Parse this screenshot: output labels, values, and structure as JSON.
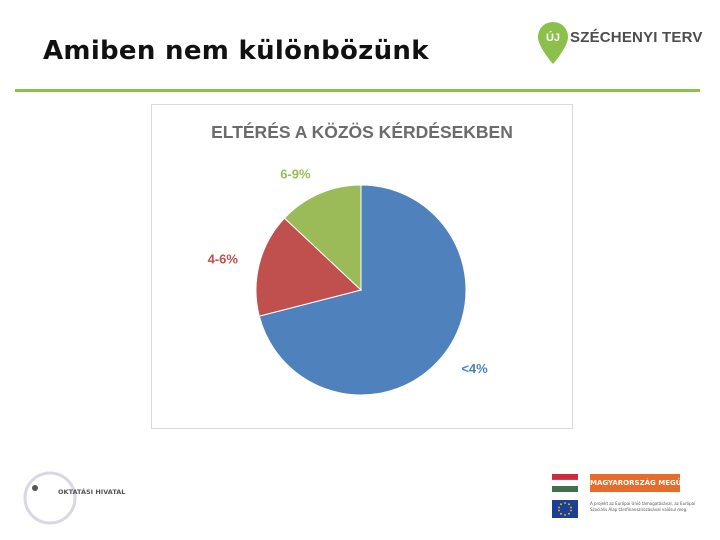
{
  "slide": {
    "title": "Amiben nem különbözünk"
  },
  "logos": {
    "szechenyi": {
      "mark": "ÚJ",
      "text": "SZÉCHENYI TERV",
      "color": "#8cc04b"
    },
    "oktatasi_hivatal": {
      "text": "OKTATÁSI HIVATAL"
    },
    "hungary_banner": {
      "label": "MAGYARORSZÁG MEGÚJUL",
      "eu_text": "A projekt az Európai Unió támogatásával, az Európai Szociális Alap társfinanszírozásával valósul meg."
    }
  },
  "chart_data": {
    "type": "pie",
    "title": "ELTÉRÉS A KÖZÖS KÉRDÉSEKBEN",
    "slices": [
      {
        "label": "<4%",
        "value": 71,
        "color": "#4f81bd",
        "label_color": "#4f81bd"
      },
      {
        "label": "4-6%",
        "value": 16,
        "color": "#c0504d",
        "label_color": "#c0504d"
      },
      {
        "label": "6-9%",
        "value": 13,
        "color": "#9bbb59",
        "label_color": "#9bbb59"
      }
    ],
    "start_angle_deg": 0,
    "direction": "clockwise"
  }
}
